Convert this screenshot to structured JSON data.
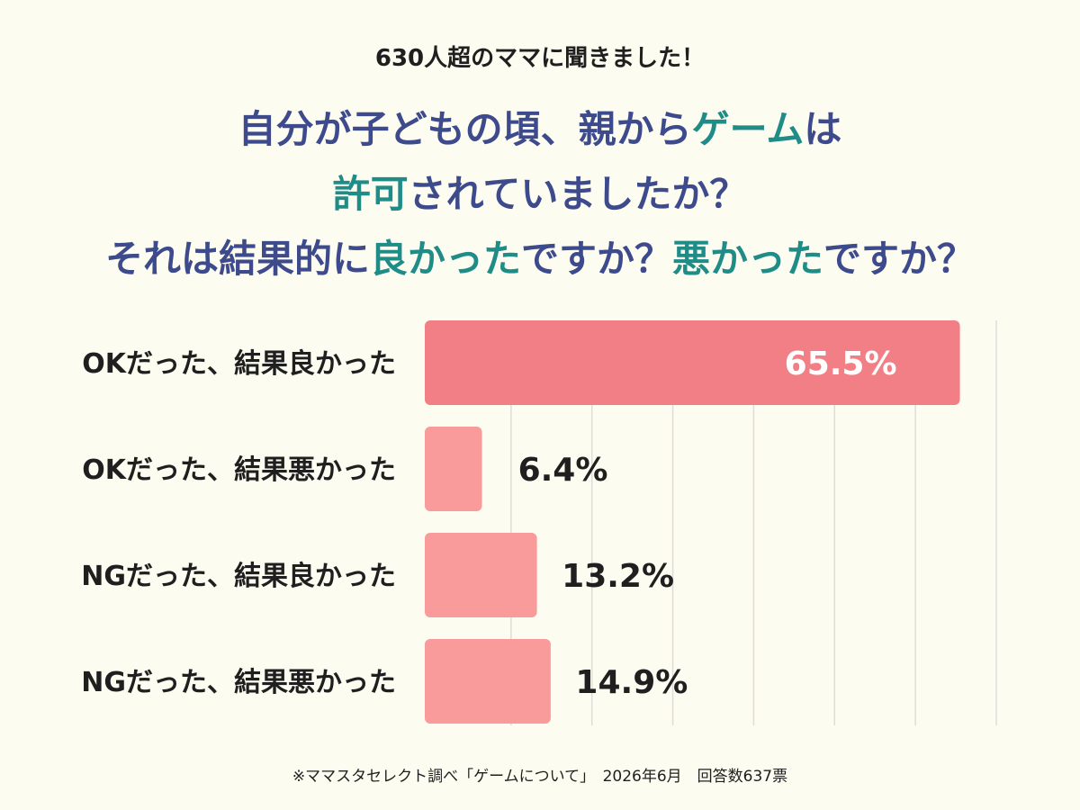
{
  "header": {
    "subtitle": "630人超のママに聞きました！",
    "title_lines": [
      [
        {
          "text": "自分が子どもの頃、親から",
          "hl": false
        },
        {
          "text": "ゲーム",
          "hl": true
        },
        {
          "text": "は",
          "hl": false
        }
      ],
      [
        {
          "text": "許可",
          "hl": true
        },
        {
          "text": "されていましたか？",
          "hl": false
        }
      ],
      [
        {
          "text": "それは結果的に",
          "hl": false
        },
        {
          "text": "良かった",
          "hl": true
        },
        {
          "text": "ですか？",
          "hl": false
        },
        {
          "text": "悪かった",
          "hl": true
        },
        {
          "text": "ですか？",
          "hl": false
        }
      ]
    ]
  },
  "chart_data": {
    "type": "bar",
    "orientation": "horizontal",
    "categories": [
      "OKだった、結果良かった",
      "OKだった、結果悪かった",
      "NGだった、結果良かった",
      "NGだった、結果悪かった"
    ],
    "values": [
      65.5,
      6.4,
      13.2,
      14.9
    ],
    "value_labels": [
      "65.5%",
      "6.4%",
      "13.2%",
      "14.9%"
    ],
    "xlim": [
      0,
      70
    ],
    "grid": true,
    "colors": {
      "highlight": "#f27f85",
      "bar": "#f99a9b",
      "grid": "#dddddd",
      "title": "#3d4a8c",
      "accent": "#1f8c87"
    }
  },
  "footer": {
    "note": "※ママスタセレクト調べ「ゲームについて」　2026年6月　回答数637票"
  }
}
